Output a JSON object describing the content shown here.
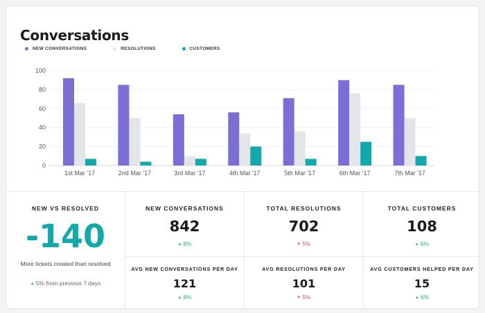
{
  "title": "Conversations",
  "colors": {
    "new": "#7b6fd5",
    "resolutions": "#e4e5ea",
    "customers": "#12a9ad",
    "up": "#1fb28a",
    "down": "#e0515f"
  },
  "legend": [
    {
      "label": "NEW CONVERSATIONS",
      "color": "#7b6fd5"
    },
    {
      "label": "RESOLUTIONS",
      "color": "#e4e5ea"
    },
    {
      "label": "CUSTOMERS",
      "color": "#12a9ad"
    }
  ],
  "chart_data": {
    "type": "bar",
    "categories": [
      "1st Mar '17",
      "2nd Mar '17",
      "3rd Mar '17",
      "4th Mar '17",
      "5th Mar '17",
      "6th Mar '17",
      "7th Mar '17"
    ],
    "series": [
      {
        "name": "NEW CONVERSATIONS",
        "values": [
          92,
          85,
          54,
          56,
          71,
          90,
          85
        ]
      },
      {
        "name": "RESOLUTIONS",
        "values": [
          66,
          50,
          10,
          34,
          36,
          76,
          50
        ]
      },
      {
        "name": "CUSTOMERS",
        "values": [
          7,
          4,
          7,
          20,
          7,
          25,
          10
        ]
      }
    ],
    "yticks": [
      0,
      20,
      40,
      60,
      80,
      100
    ],
    "ylim": [
      0,
      100
    ],
    "grid": true,
    "legend_position": "top-left"
  },
  "summary": {
    "nvr_title": "NEW VS RESOLVED",
    "nvr_value": "-140",
    "nvr_caption": "More tickets created than resolved",
    "nvr_trend": "5% from previous 7 days"
  },
  "metrics": {
    "new_conversations": {
      "label": "NEW CONVERSATIONS",
      "value": "842",
      "change": "8%",
      "direction": "up"
    },
    "total_resolutions": {
      "label": "TOTAL RESOLUTIONS",
      "value": "702",
      "change": "5%",
      "direction": "down"
    },
    "total_customers": {
      "label": "TOTAL CUSTOMERS",
      "value": "108",
      "change": "6%",
      "direction": "up"
    },
    "avg_new_conversations": {
      "label": "AVG NEW CONVERSATIONS PER DAY",
      "value": "121",
      "change": "8%",
      "direction": "up"
    },
    "avg_resolutions": {
      "label": "AVG RESOLUTIONS PER DAY",
      "value": "101",
      "change": "5%",
      "direction": "down"
    },
    "avg_customers_helped": {
      "label": "AVG CUSTOMERS HELPED PER DAY",
      "value": "15",
      "change": "6%",
      "direction": "up"
    }
  }
}
